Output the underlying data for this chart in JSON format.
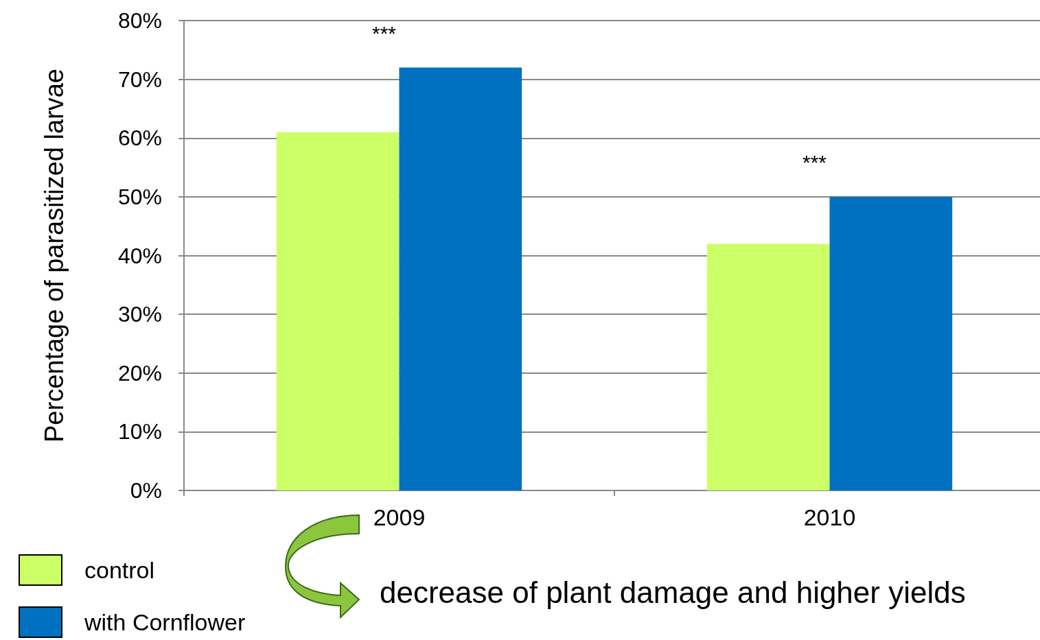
{
  "chart_data": {
    "type": "bar",
    "ylabel": "Percentage of parasitized larvae",
    "categories": [
      "2009",
      "2010"
    ],
    "series": [
      {
        "name": "control",
        "color": "#ccff66",
        "values": [
          61,
          42
        ]
      },
      {
        "name": "with Cornflower",
        "color": "#0070c0",
        "values": [
          72,
          50
        ]
      }
    ],
    "ylim": [
      0,
      80
    ],
    "yticks": [
      {
        "value": 0,
        "label": "0%"
      },
      {
        "value": 10,
        "label": "10%"
      },
      {
        "value": 20,
        "label": "20%"
      },
      {
        "value": 30,
        "label": "30%"
      },
      {
        "value": 40,
        "label": "40%"
      },
      {
        "value": 50,
        "label": "50%"
      },
      {
        "value": 60,
        "label": "60%"
      },
      {
        "value": 70,
        "label": "70%"
      },
      {
        "value": 80,
        "label": "80%"
      }
    ],
    "grid": "y",
    "legend": "bottom left",
    "annotations": [
      "***",
      "***",
      "decrease of plant damage and higher yields"
    ]
  }
}
